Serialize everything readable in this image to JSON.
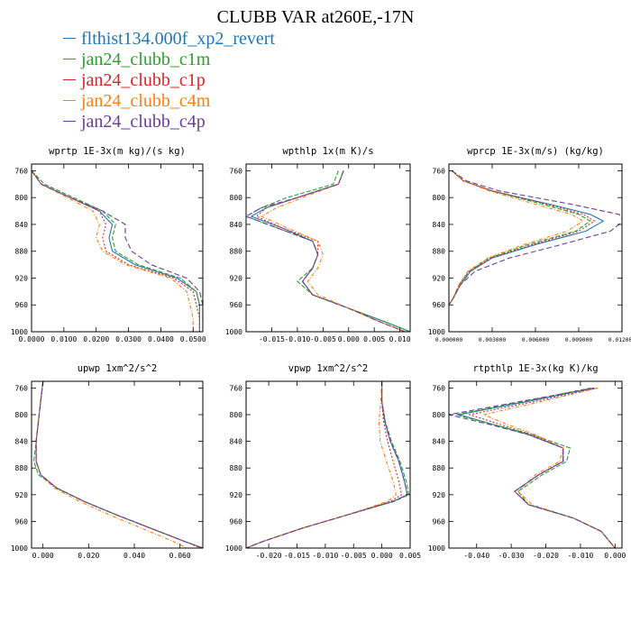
{
  "title": "CLUBB VAR at260E,-17N",
  "legend": [
    {
      "name": "flthist134.000f_xp2_revert",
      "color": "#1f77b4"
    },
    {
      "name": "jan24_clubb_c1m",
      "color": "#2ca02c"
    },
    {
      "name": "jan24_clubb_c1p",
      "color": "#d62728"
    },
    {
      "name": "jan24_clubb_c4m",
      "color": "#ff7f0e"
    },
    {
      "name": "jan24_clubb_c4p",
      "color": "#6a3d9a"
    }
  ],
  "chart_data": [
    {
      "type": "line",
      "title": "wprtp  1E-3x(m kg)/(s kg)",
      "xlim": [
        0.0,
        0.053
      ],
      "ylim": [
        750,
        1000
      ],
      "y_inverted": true,
      "xticks": [
        0.0,
        0.01,
        0.02,
        0.03,
        0.04,
        0.05
      ],
      "xtick_labels": [
        "0.0000",
        "0.0100",
        "0.0200",
        "0.0300",
        "0.0400",
        "0.0500"
      ],
      "yticks": [
        760,
        800,
        840,
        880,
        920,
        960,
        1000
      ],
      "y": [
        760,
        780,
        800,
        820,
        840,
        860,
        880,
        900,
        920,
        940,
        960,
        980,
        1000
      ],
      "series": [
        {
          "name": "flthist134.000f_xp2_revert",
          "values": [
            0.0,
            0.003,
            0.012,
            0.021,
            0.025,
            0.024,
            0.025,
            0.032,
            0.045,
            0.051,
            0.052,
            0.052,
            0.052
          ]
        },
        {
          "name": "jan24_clubb_c1m",
          "values": [
            0.0,
            0.004,
            0.013,
            0.022,
            0.026,
            0.025,
            0.026,
            0.033,
            0.046,
            0.051,
            0.052,
            0.052,
            0.052
          ]
        },
        {
          "name": "jan24_clubb_c1p",
          "values": [
            0.0,
            0.003,
            0.012,
            0.021,
            0.023,
            0.022,
            0.023,
            0.03,
            0.044,
            0.05,
            0.051,
            0.052,
            0.052
          ]
        },
        {
          "name": "jan24_clubb_c4m",
          "values": [
            0.0,
            0.003,
            0.011,
            0.019,
            0.021,
            0.02,
            0.022,
            0.029,
            0.043,
            0.048,
            0.049,
            0.05,
            0.05
          ]
        },
        {
          "name": "jan24_clubb_c4p",
          "values": [
            0.0,
            0.003,
            0.012,
            0.022,
            0.029,
            0.029,
            0.031,
            0.037,
            0.048,
            0.052,
            0.053,
            0.053,
            0.053
          ]
        }
      ]
    },
    {
      "type": "line",
      "title": "wpthlp  1x(m K)/s",
      "xlim": [
        -0.02,
        0.012
      ],
      "ylim": [
        750,
        1000
      ],
      "y_inverted": true,
      "xticks": [
        -0.015,
        -0.01,
        -0.005,
        0.0,
        0.005,
        0.01
      ],
      "xtick_labels": [
        "-0.015",
        "-0.010",
        "-0.005",
        "0.000",
        "0.005",
        "0.010"
      ],
      "yticks": [
        760,
        800,
        840,
        880,
        920,
        960,
        1000
      ],
      "y": [
        760,
        780,
        800,
        815,
        828,
        845,
        865,
        885,
        905,
        925,
        945,
        965,
        985,
        1000
      ],
      "series": [
        {
          "name": "flthist134.000f_xp2_revert",
          "values": [
            -0.001,
            -0.002,
            -0.01,
            -0.016,
            -0.019,
            -0.013,
            -0.007,
            -0.006,
            -0.007,
            -0.009,
            -0.007,
            0.0,
            0.007,
            0.012
          ]
        },
        {
          "name": "jan24_clubb_c1m",
          "values": [
            -0.002,
            -0.003,
            -0.012,
            -0.017,
            -0.02,
            -0.014,
            -0.007,
            -0.006,
            -0.007,
            -0.01,
            -0.007,
            0.0,
            0.007,
            0.012
          ]
        },
        {
          "name": "jan24_clubb_c1p",
          "values": [
            -0.001,
            -0.002,
            -0.01,
            -0.016,
            -0.018,
            -0.013,
            -0.006,
            -0.006,
            -0.007,
            -0.009,
            -0.007,
            0.0,
            0.006,
            0.011
          ]
        },
        {
          "name": "jan24_clubb_c4m",
          "values": [
            -0.001,
            -0.002,
            -0.009,
            -0.014,
            -0.017,
            -0.012,
            -0.006,
            -0.005,
            -0.006,
            -0.008,
            -0.006,
            0.0,
            0.006,
            0.011
          ]
        },
        {
          "name": "jan24_clubb_c4p",
          "values": [
            -0.001,
            -0.002,
            -0.01,
            -0.017,
            -0.02,
            -0.014,
            -0.007,
            -0.006,
            -0.007,
            -0.009,
            -0.007,
            0.0,
            0.006,
            0.011
          ]
        }
      ]
    },
    {
      "type": "line",
      "title": "wprcp  1E-3x(m/s) (kg/kg)",
      "xlim": [
        0.0,
        0.012
      ],
      "ylim": [
        750,
        1000
      ],
      "y_inverted": true,
      "xticks": [
        0.0,
        0.003,
        0.006,
        0.009,
        0.012
      ],
      "xtick_labels": [
        "0.000000",
        "0.003000",
        "0.006000",
        "0.009000",
        "0.012000"
      ],
      "yticks": [
        760,
        800,
        840,
        880,
        920,
        960,
        1000
      ],
      "y": [
        760,
        775,
        790,
        810,
        825,
        835,
        850,
        870,
        890,
        910,
        930,
        950,
        960
      ],
      "series": [
        {
          "name": "flthist134.000f_xp2_revert",
          "values": [
            0.0002,
            0.001,
            0.003,
            0.007,
            0.0098,
            0.0107,
            0.0095,
            0.006,
            0.003,
            0.0015,
            0.0008,
            0.0003,
            0.0
          ]
        },
        {
          "name": "jan24_clubb_c1m",
          "values": [
            0.0002,
            0.001,
            0.003,
            0.0065,
            0.009,
            0.0098,
            0.0088,
            0.0055,
            0.0028,
            0.0014,
            0.0007,
            0.0003,
            0.0
          ]
        },
        {
          "name": "jan24_clubb_c1p",
          "values": [
            0.0002,
            0.001,
            0.003,
            0.0068,
            0.0093,
            0.0101,
            0.009,
            0.0058,
            0.0029,
            0.0014,
            0.0007,
            0.0003,
            0.0
          ]
        },
        {
          "name": "jan24_clubb_c4m",
          "values": [
            0.0002,
            0.001,
            0.0028,
            0.006,
            0.0085,
            0.0093,
            0.0082,
            0.0052,
            0.0027,
            0.0013,
            0.0007,
            0.0003,
            0.0
          ]
        },
        {
          "name": "jan24_clubb_c4p",
          "values": [
            0.0002,
            0.0012,
            0.0035,
            0.0085,
            0.0118,
            0.0121,
            0.0112,
            0.0078,
            0.0042,
            0.0018,
            0.0008,
            0.0003,
            0.0
          ]
        }
      ]
    },
    {
      "type": "line",
      "title": "upwp  1xm^2/s^2",
      "xlim": [
        -0.005,
        0.07
      ],
      "ylim": [
        750,
        1000
      ],
      "y_inverted": true,
      "xticks": [
        0.0,
        0.02,
        0.04,
        0.06
      ],
      "xtick_labels": [
        "0.000",
        "0.020",
        "0.040",
        "0.060"
      ],
      "yticks": [
        760,
        800,
        840,
        880,
        920,
        960,
        1000
      ],
      "y": [
        750,
        780,
        810,
        840,
        870,
        890,
        910,
        930,
        950,
        970,
        990,
        1000
      ],
      "series": [
        {
          "name": "flthist134.000f_xp2_revert",
          "values": [
            0.0,
            -0.001,
            -0.002,
            -0.003,
            -0.003,
            -0.001,
            0.006,
            0.018,
            0.032,
            0.047,
            0.062,
            0.07
          ]
        },
        {
          "name": "jan24_clubb_c1m",
          "values": [
            0.0,
            -0.001,
            -0.002,
            -0.003,
            -0.004,
            -0.002,
            0.006,
            0.018,
            0.032,
            0.047,
            0.062,
            0.07
          ]
        },
        {
          "name": "jan24_clubb_c1p",
          "values": [
            0.0,
            -0.001,
            -0.002,
            -0.003,
            -0.003,
            -0.001,
            0.006,
            0.018,
            0.032,
            0.047,
            0.062,
            0.069
          ]
        },
        {
          "name": "jan24_clubb_c4m",
          "values": [
            0.0,
            -0.001,
            -0.002,
            -0.003,
            -0.003,
            -0.001,
            0.005,
            0.016,
            0.029,
            0.043,
            0.057,
            0.063
          ]
        },
        {
          "name": "jan24_clubb_c4p",
          "values": [
            0.0,
            -0.001,
            -0.002,
            -0.003,
            -0.003,
            -0.001,
            0.006,
            0.018,
            0.032,
            0.047,
            0.062,
            0.07
          ]
        }
      ]
    },
    {
      "type": "line",
      "title": "vpwp  1xm^2/s^2",
      "xlim": [
        -0.024,
        0.005
      ],
      "ylim": [
        750,
        1000
      ],
      "y_inverted": true,
      "xticks": [
        -0.02,
        -0.015,
        -0.01,
        -0.005,
        0.0,
        0.005
      ],
      "xtick_labels": [
        "-0.020",
        "-0.015",
        "-0.010",
        "-0.005",
        "0.000",
        "0.005"
      ],
      "yticks": [
        760,
        800,
        840,
        880,
        920,
        960,
        1000
      ],
      "y": [
        750,
        780,
        810,
        840,
        870,
        900,
        920,
        930,
        950,
        970,
        990,
        1000
      ],
      "series": [
        {
          "name": "flthist134.000f_xp2_revert",
          "values": [
            0.0,
            0.0,
            0.0005,
            0.0015,
            0.003,
            0.004,
            0.0045,
            0.002,
            -0.006,
            -0.014,
            -0.021,
            -0.024
          ]
        },
        {
          "name": "jan24_clubb_c1m",
          "values": [
            0.0,
            0.0,
            0.0006,
            0.0017,
            0.0032,
            0.0043,
            0.0048,
            0.0022,
            -0.006,
            -0.014,
            -0.021,
            -0.024
          ]
        },
        {
          "name": "jan24_clubb_c1p",
          "values": [
            0.0,
            0.0,
            0.0003,
            0.001,
            0.002,
            0.003,
            0.0035,
            0.0015,
            -0.006,
            -0.014,
            -0.021,
            -0.024
          ]
        },
        {
          "name": "jan24_clubb_c4m",
          "values": [
            0.0,
            -0.0002,
            -0.0005,
            -0.0003,
            0.0008,
            0.002,
            0.0025,
            0.001,
            -0.006,
            -0.014,
            -0.021,
            -0.024
          ]
        },
        {
          "name": "jan24_clubb_c4p",
          "values": [
            0.0,
            0.0,
            0.0005,
            0.0015,
            0.003,
            0.004,
            0.0045,
            0.002,
            -0.006,
            -0.014,
            -0.021,
            -0.024
          ]
        }
      ]
    },
    {
      "type": "line",
      "title": "rtpthlp  1E-3x(kg K)/kg",
      "xlim": [
        -0.048,
        0.002
      ],
      "ylim": [
        750,
        1000
      ],
      "y_inverted": true,
      "xticks": [
        -0.04,
        -0.03,
        -0.02,
        -0.01,
        0.0
      ],
      "xtick_labels": [
        "-0.040",
        "-0.030",
        "-0.020",
        "-0.010",
        "0.000"
      ],
      "yticks": [
        760,
        800,
        840,
        880,
        920,
        960,
        1000
      ],
      "y": [
        760,
        780,
        800,
        815,
        830,
        850,
        870,
        890,
        915,
        935,
        955,
        975,
        1000
      ],
      "series": [
        {
          "name": "flthist134.000f_xp2_revert",
          "values": [
            -0.006,
            -0.025,
            -0.045,
            -0.035,
            -0.025,
            -0.015,
            -0.015,
            -0.022,
            -0.029,
            -0.025,
            -0.012,
            -0.004,
            0.0
          ]
        },
        {
          "name": "jan24_clubb_c1m",
          "values": [
            -0.007,
            -0.026,
            -0.046,
            -0.035,
            -0.024,
            -0.013,
            -0.014,
            -0.021,
            -0.028,
            -0.025,
            -0.012,
            -0.004,
            0.0
          ]
        },
        {
          "name": "jan24_clubb_c1p",
          "values": [
            -0.005,
            -0.023,
            -0.042,
            -0.033,
            -0.024,
            -0.015,
            -0.015,
            -0.022,
            -0.029,
            -0.025,
            -0.012,
            -0.004,
            0.0
          ]
        },
        {
          "name": "jan24_clubb_c4m",
          "values": [
            -0.005,
            -0.021,
            -0.038,
            -0.031,
            -0.023,
            -0.015,
            -0.016,
            -0.023,
            -0.028,
            -0.024,
            -0.012,
            -0.004,
            0.0
          ]
        },
        {
          "name": "jan24_clubb_c4p",
          "values": [
            -0.006,
            -0.027,
            -0.048,
            -0.036,
            -0.025,
            -0.015,
            -0.015,
            -0.022,
            -0.029,
            -0.025,
            -0.012,
            -0.004,
            0.0
          ]
        }
      ]
    }
  ]
}
